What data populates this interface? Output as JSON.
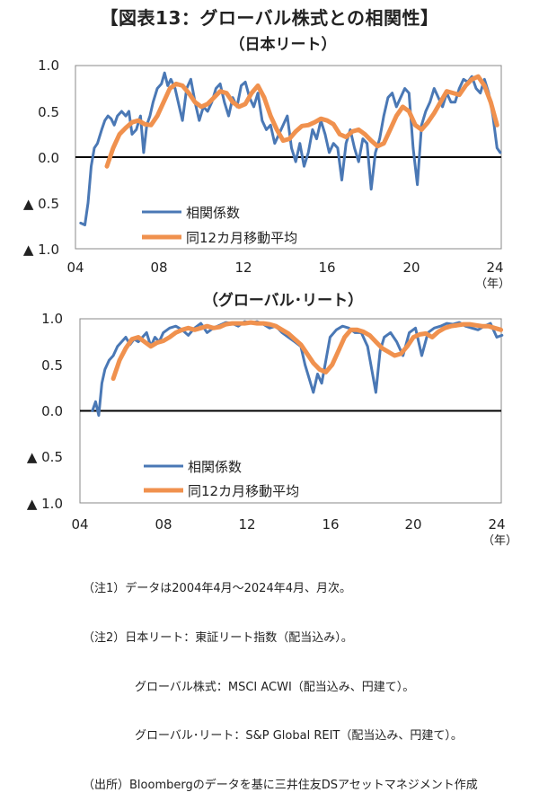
{
  "figure_title": "【図表13：グローバル株式との相関性】",
  "colors": {
    "raw": "#4A78B5",
    "ma": "#F0914E",
    "axis": "#000000",
    "frame": "#888888"
  },
  "chart_data": [
    {
      "type": "line",
      "title": "（日本リート）",
      "x_tick_labels": [
        "04",
        "08",
        "12",
        "16",
        "20",
        "24"
      ],
      "x_ticks": [
        2004,
        2008,
        2012,
        2016,
        2020,
        2024
      ],
      "x_unit": "（年）",
      "xlim": [
        2004,
        2024.3
      ],
      "y_tick_labels": [
        "1.0",
        "0.5",
        "0.0",
        "▲ 0.5",
        "▲ 1.0"
      ],
      "y_ticks": [
        1.0,
        0.5,
        0.0,
        -0.5,
        -1.0
      ],
      "ylim": [
        -1.0,
        1.0
      ],
      "legend": [
        "相関係数",
        "同12カ月移動平均"
      ],
      "series": [
        {
          "name": "相関係数",
          "x": [
            2004.25,
            2004.45,
            2004.6,
            2004.75,
            2004.9,
            2005.05,
            2005.25,
            2005.4,
            2005.55,
            2005.7,
            2005.85,
            2006.0,
            2006.2,
            2006.4,
            2006.55,
            2006.7,
            2006.9,
            2007.1,
            2007.25,
            2007.4,
            2007.55,
            2007.7,
            2007.9,
            2008.1,
            2008.25,
            2008.4,
            2008.55,
            2008.75,
            2008.9,
            2009.1,
            2009.3,
            2009.5,
            2009.7,
            2009.9,
            2010.1,
            2010.3,
            2010.5,
            2010.7,
            2010.9,
            2011.1,
            2011.3,
            2011.5,
            2011.7,
            2011.9,
            2012.1,
            2012.3,
            2012.5,
            2012.7,
            2012.9,
            2013.1,
            2013.3,
            2013.5,
            2013.7,
            2013.9,
            2014.1,
            2014.3,
            2014.5,
            2014.7,
            2014.9,
            2015.1,
            2015.3,
            2015.5,
            2015.7,
            2015.9,
            2016.1,
            2016.3,
            2016.5,
            2016.7,
            2016.9,
            2017.1,
            2017.3,
            2017.5,
            2017.7,
            2017.9,
            2018.1,
            2018.3,
            2018.5,
            2018.7,
            2018.9,
            2019.1,
            2019.3,
            2019.5,
            2019.7,
            2019.9,
            2020.1,
            2020.3,
            2020.5,
            2020.7,
            2020.9,
            2021.1,
            2021.3,
            2021.5,
            2021.7,
            2021.9,
            2022.1,
            2022.3,
            2022.5,
            2022.7,
            2022.9,
            2023.1,
            2023.3,
            2023.5,
            2023.7,
            2023.9,
            2024.1,
            2024.25
          ],
          "values": [
            -0.72,
            -0.74,
            -0.5,
            -0.1,
            0.1,
            0.15,
            0.3,
            0.4,
            0.45,
            0.42,
            0.35,
            0.45,
            0.5,
            0.45,
            0.5,
            0.25,
            0.3,
            0.45,
            0.05,
            0.35,
            0.45,
            0.6,
            0.75,
            0.8,
            0.92,
            0.78,
            0.85,
            0.75,
            0.6,
            0.4,
            0.75,
            0.85,
            0.6,
            0.4,
            0.55,
            0.5,
            0.6,
            0.75,
            0.8,
            0.6,
            0.45,
            0.65,
            0.55,
            0.78,
            0.82,
            0.65,
            0.55,
            0.7,
            0.4,
            0.3,
            0.35,
            0.15,
            0.25,
            0.35,
            0.45,
            0.1,
            -0.05,
            0.15,
            -0.1,
            0.05,
            0.3,
            0.2,
            0.4,
            0.25,
            0.05,
            0.15,
            0.1,
            -0.25,
            0.15,
            0.3,
            0.1,
            -0.05,
            0.2,
            0.15,
            -0.35,
            0.05,
            0.2,
            0.45,
            0.65,
            0.7,
            0.55,
            0.65,
            0.75,
            0.7,
            0.1,
            -0.3,
            0.35,
            0.5,
            0.6,
            0.75,
            0.65,
            0.55,
            0.7,
            0.6,
            0.6,
            0.75,
            0.85,
            0.82,
            0.88,
            0.75,
            0.7,
            0.85,
            0.7,
            0.45,
            0.1,
            0.05
          ]
        },
        {
          "name": "同12カ月移動平均",
          "x": [
            2005.5,
            2005.8,
            2006.1,
            2006.4,
            2006.7,
            2007.0,
            2007.3,
            2007.6,
            2007.9,
            2008.2,
            2008.5,
            2008.8,
            2009.1,
            2009.4,
            2009.7,
            2010.0,
            2010.3,
            2010.6,
            2010.9,
            2011.2,
            2011.5,
            2011.8,
            2012.1,
            2012.4,
            2012.7,
            2013.0,
            2013.3,
            2013.6,
            2013.9,
            2014.2,
            2014.5,
            2014.8,
            2015.1,
            2015.4,
            2015.7,
            2016.0,
            2016.3,
            2016.6,
            2016.9,
            2017.2,
            2017.5,
            2017.8,
            2018.1,
            2018.4,
            2018.7,
            2019.0,
            2019.3,
            2019.6,
            2019.9,
            2020.2,
            2020.5,
            2020.8,
            2021.1,
            2021.4,
            2021.7,
            2022.0,
            2022.3,
            2022.6,
            2022.9,
            2023.2,
            2023.5,
            2023.8,
            2024.1
          ],
          "values": [
            -0.1,
            0.1,
            0.25,
            0.32,
            0.38,
            0.4,
            0.36,
            0.35,
            0.45,
            0.6,
            0.75,
            0.8,
            0.78,
            0.7,
            0.6,
            0.55,
            0.58,
            0.65,
            0.72,
            0.7,
            0.6,
            0.55,
            0.58,
            0.7,
            0.78,
            0.65,
            0.45,
            0.3,
            0.18,
            0.2,
            0.28,
            0.34,
            0.35,
            0.38,
            0.42,
            0.4,
            0.36,
            0.25,
            0.22,
            0.28,
            0.3,
            0.25,
            0.18,
            0.12,
            0.15,
            0.3,
            0.45,
            0.55,
            0.5,
            0.35,
            0.3,
            0.38,
            0.48,
            0.6,
            0.72,
            0.7,
            0.68,
            0.78,
            0.85,
            0.88,
            0.78,
            0.6,
            0.35
          ]
        }
      ]
    },
    {
      "type": "line",
      "title": "（グローバル･リート）",
      "x_tick_labels": [
        "04",
        "08",
        "12",
        "16",
        "20",
        "24"
      ],
      "x_ticks": [
        2004,
        2008,
        2012,
        2016,
        2020,
        2024
      ],
      "x_unit": "（年）",
      "xlim": [
        2004,
        2024.3
      ],
      "y_tick_labels": [
        "1.0",
        "0.5",
        "0.0",
        "▲ 0.5",
        "▲ 1.0"
      ],
      "y_ticks": [
        1.0,
        0.5,
        0.0,
        -0.5,
        -1.0
      ],
      "ylim": [
        -1.0,
        1.0
      ],
      "legend": [
        "相関係数",
        "同12カ月移動平均"
      ],
      "series": [
        {
          "name": "相関係数",
          "x": [
            2004.6,
            2004.75,
            2004.9,
            2005.05,
            2005.2,
            2005.4,
            2005.6,
            2005.8,
            2006.0,
            2006.2,
            2006.4,
            2006.6,
            2006.8,
            2007.0,
            2007.2,
            2007.4,
            2007.6,
            2007.8,
            2008.0,
            2008.3,
            2008.6,
            2008.9,
            2009.2,
            2009.5,
            2009.8,
            2010.1,
            2010.4,
            2010.7,
            2011.0,
            2011.3,
            2011.6,
            2011.9,
            2012.2,
            2012.5,
            2012.8,
            2013.1,
            2013.4,
            2013.7,
            2014.0,
            2014.3,
            2014.6,
            2014.8,
            2015.0,
            2015.2,
            2015.4,
            2015.6,
            2015.8,
            2016.0,
            2016.3,
            2016.6,
            2016.9,
            2017.2,
            2017.5,
            2017.8,
            2018.0,
            2018.2,
            2018.4,
            2018.6,
            2018.9,
            2019.2,
            2019.5,
            2019.8,
            2020.1,
            2020.4,
            2020.7,
            2021.0,
            2021.3,
            2021.6,
            2021.9,
            2022.2,
            2022.5,
            2022.8,
            2023.1,
            2023.4,
            2023.7,
            2024.0,
            2024.25
          ],
          "values": [
            0.0,
            0.1,
            -0.05,
            0.3,
            0.45,
            0.55,
            0.6,
            0.7,
            0.75,
            0.8,
            0.72,
            0.78,
            0.75,
            0.8,
            0.85,
            0.7,
            0.8,
            0.75,
            0.85,
            0.9,
            0.92,
            0.88,
            0.82,
            0.9,
            0.95,
            0.85,
            0.9,
            0.93,
            0.96,
            0.95,
            0.92,
            0.97,
            0.95,
            0.97,
            0.94,
            0.9,
            0.92,
            0.85,
            0.8,
            0.75,
            0.7,
            0.5,
            0.35,
            0.2,
            0.4,
            0.3,
            0.55,
            0.8,
            0.88,
            0.92,
            0.9,
            0.85,
            0.85,
            0.7,
            0.45,
            0.2,
            0.65,
            0.8,
            0.85,
            0.75,
            0.6,
            0.85,
            0.9,
            0.6,
            0.85,
            0.9,
            0.92,
            0.95,
            0.94,
            0.96,
            0.92,
            0.9,
            0.88,
            0.92,
            0.95,
            0.8,
            0.82
          ]
        },
        {
          "name": "同12カ月移動平均",
          "x": [
            2005.6,
            2005.9,
            2006.2,
            2006.5,
            2006.8,
            2007.1,
            2007.4,
            2007.7,
            2008.0,
            2008.3,
            2008.6,
            2008.9,
            2009.2,
            2009.5,
            2009.8,
            2010.1,
            2010.4,
            2010.7,
            2011.0,
            2011.3,
            2011.6,
            2011.9,
            2012.2,
            2012.5,
            2012.8,
            2013.1,
            2013.4,
            2013.7,
            2014.0,
            2014.3,
            2014.6,
            2014.9,
            2015.2,
            2015.5,
            2015.8,
            2016.1,
            2016.4,
            2016.7,
            2017.0,
            2017.3,
            2017.6,
            2017.9,
            2018.2,
            2018.5,
            2018.8,
            2019.1,
            2019.4,
            2019.7,
            2020.0,
            2020.3,
            2020.6,
            2020.9,
            2021.2,
            2021.5,
            2021.8,
            2022.1,
            2022.4,
            2022.7,
            2023.0,
            2023.3,
            2023.6,
            2023.9,
            2024.2
          ],
          "values": [
            0.35,
            0.55,
            0.68,
            0.78,
            0.8,
            0.75,
            0.7,
            0.74,
            0.76,
            0.8,
            0.85,
            0.88,
            0.9,
            0.88,
            0.9,
            0.92,
            0.9,
            0.91,
            0.94,
            0.95,
            0.95,
            0.95,
            0.96,
            0.95,
            0.95,
            0.94,
            0.92,
            0.88,
            0.84,
            0.78,
            0.72,
            0.62,
            0.52,
            0.45,
            0.42,
            0.5,
            0.65,
            0.8,
            0.88,
            0.88,
            0.86,
            0.82,
            0.75,
            0.68,
            0.64,
            0.6,
            0.62,
            0.7,
            0.8,
            0.83,
            0.84,
            0.8,
            0.86,
            0.9,
            0.92,
            0.93,
            0.94,
            0.94,
            0.93,
            0.92,
            0.92,
            0.9,
            0.88
          ]
        }
      ]
    }
  ],
  "notes": [
    "（注1）データは2004年4月～2024年4月、月次。",
    "（注2）日本リート：東証リート指数（配当込み）。",
    "グローバル株式：MSCI ACWI（配当込み、円建て）。",
    "グローバル･リート：S&P Global REIT（配当込み、円建て）。",
    "（出所）Bloombergのデータを基に三井住友DSアセットマネジメント作成"
  ]
}
